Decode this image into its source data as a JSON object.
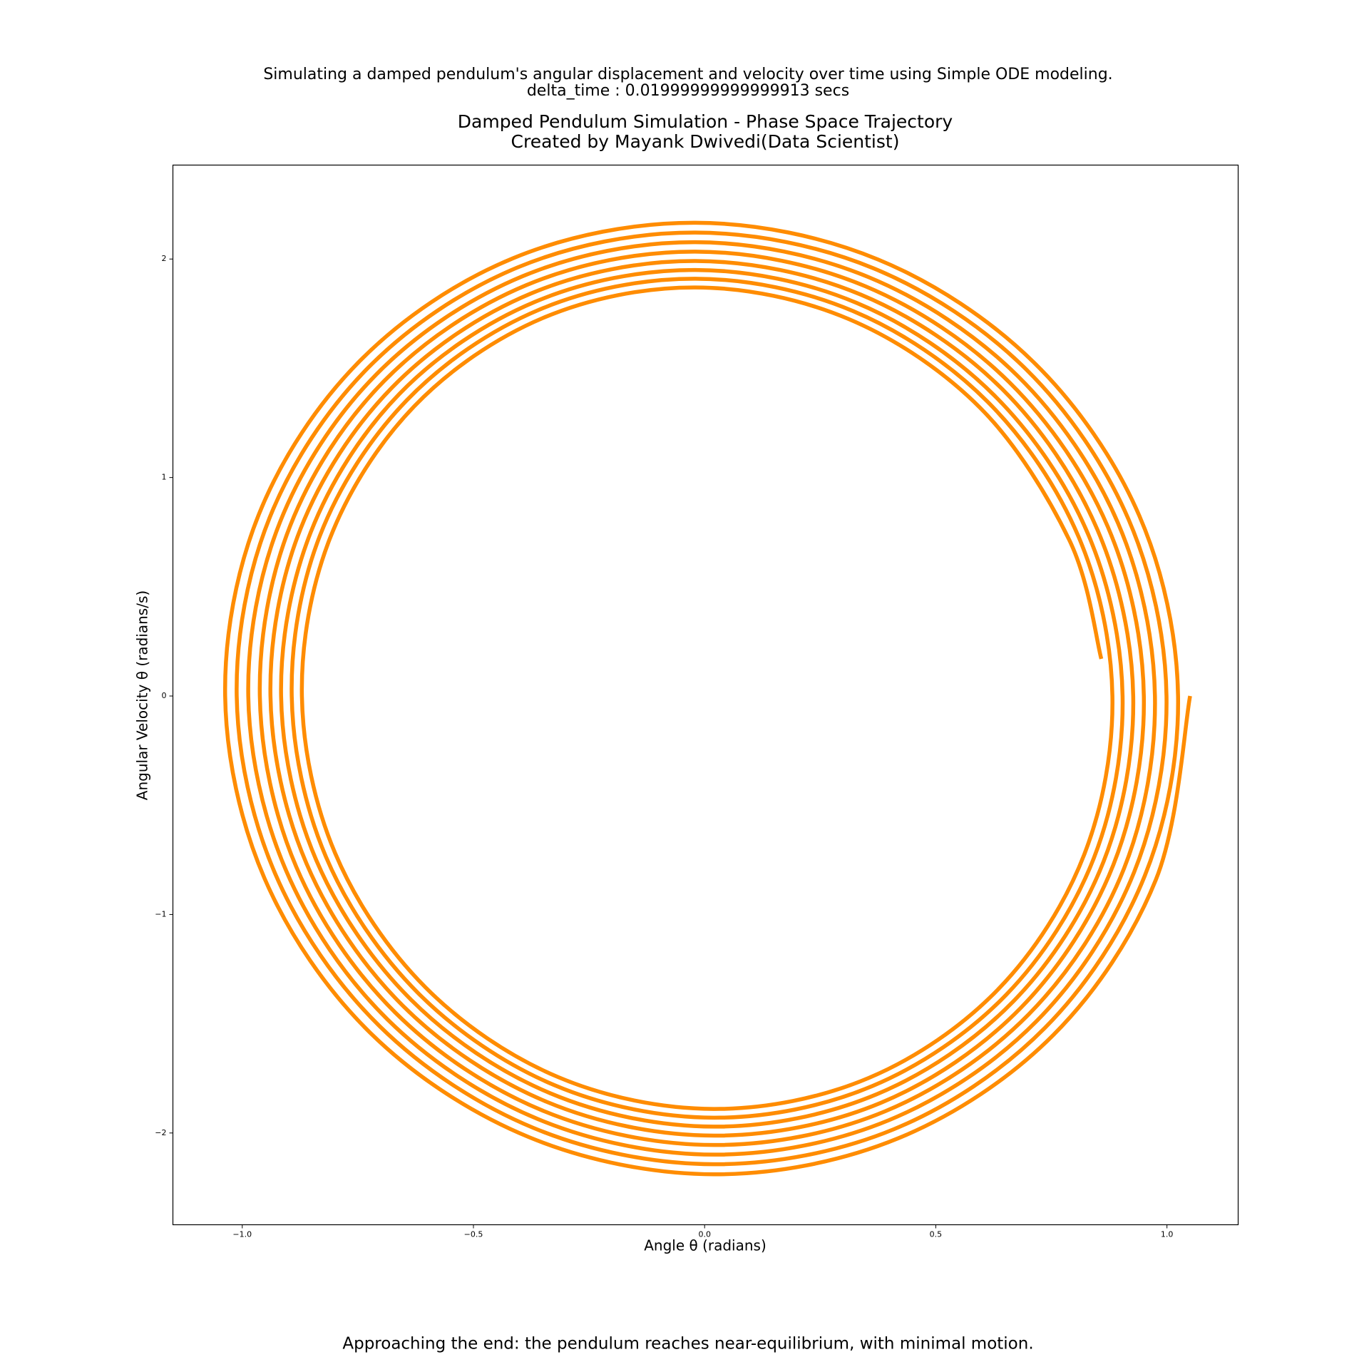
{
  "chart_data": {
    "type": "line",
    "suptitle": [
      "Simulating a damped pendulum's angular displacement and velocity over time using Simple ODE modeling.",
      "delta_time : 0.01999999999999913 secs"
    ],
    "title": [
      "Damped Pendulum Simulation - Phase Space Trajectory",
      "Created by Mayank Dwivedi(Data Scientist)"
    ],
    "xlabel": "Angle θ (radians)",
    "ylabel": "Angular Velocity θ (radians/s)",
    "annotation": "Approaching the end: the pendulum reaches near-equilibrium, with minimal motion.",
    "annotation_color": "#008000",
    "color": "#ff8c00",
    "xlim": [
      -1.15,
      1.154
    ],
    "ylim": [
      -2.42,
      2.43
    ],
    "xticks": [
      {
        "value": -1,
        "label": "−1.0"
      },
      {
        "value": -0.5,
        "label": "−0.5"
      },
      {
        "value": 0,
        "label": "0.0"
      },
      {
        "value": 0.5,
        "label": "0.5"
      },
      {
        "value": 1,
        "label": "1.0"
      }
    ],
    "yticks": [
      {
        "value": -2,
        "label": "−2"
      },
      {
        "value": -1,
        "label": "−1"
      },
      0,
      1,
      2
    ],
    "grid": false,
    "x": [
      1.05,
      0.976,
      0.754,
      0.418,
      0.02,
      -0.38,
      -0.722,
      -0.952,
      -1.037,
      -0.964,
      -0.745,
      -0.414,
      -0.02,
      0.375,
      0.712,
      0.94,
      1.024,
      0.952,
      0.736,
      0.409,
      0.02,
      -0.37,
      -0.703,
      -0.928,
      -1.012,
      -0.941,
      -0.727,
      -0.404,
      -0.02,
      0.366,
      0.695,
      0.917,
      0.999,
      0.929,
      0.718,
      0.399,
      0.02,
      -0.361,
      -0.686,
      -0.905,
      -0.987,
      -0.918,
      -0.71,
      -0.394,
      -0.02,
      0.356,
      0.677,
      0.894,
      0.974,
      0.907,
      0.701,
      0.39,
      0.02,
      -0.352,
      -0.669,
      -0.883,
      -0.962,
      -0.896,
      -0.693,
      -0.385,
      -0.02,
      0.347,
      0.66,
      0.872,
      0.95,
      0.884,
      0.684,
      0.381,
      0.02,
      -0.342,
      -0.652,
      -0.861,
      -0.939,
      -0.874,
      -0.676,
      -0.376,
      -0.02,
      0.338,
      0.644,
      0.85,
      0.927,
      0.863,
      0.668,
      0.372,
      0.02,
      -0.334,
      -0.635,
      -0.84,
      -0.916,
      -0.852,
      -0.66,
      -0.367,
      -0.02,
      0.329,
      0.627,
      0.829,
      0.904,
      0.842,
      0.652,
      0.363,
      0.02,
      -0.325,
      -0.619,
      -0.819,
      -0.893,
      -0.832,
      -0.644,
      -0.359,
      -0.02,
      0.321,
      0.612,
      0.809,
      0.882,
      0.821,
      0.636,
      0.355,
      0.02,
      -0.317,
      -0.604,
      -0.799,
      -0.871,
      -0.811,
      -0.628,
      -0.35,
      -0.02,
      0.312,
      0.596,
      0.789,
      0.858
    ],
    "values": [
      0,
      -0.841,
      -1.552,
      -2.025,
      -2.189,
      -2.019,
      -1.544,
      -0.834,
      0,
      0.832,
      1.535,
      2.004,
      2.166,
      1.998,
      1.527,
      0.826,
      0,
      -0.823,
      -1.519,
      -1.983,
      -2.143,
      -1.977,
      -1.511,
      -0.817,
      0,
      0.815,
      1.504,
      1.962,
      2.121,
      1.957,
      1.496,
      0.808,
      0,
      -0.806,
      -1.488,
      -1.941,
      -2.099,
      -1.936,
      -1.48,
      -0.8,
      0,
      0.798,
      1.472,
      1.921,
      2.077,
      1.916,
      1.465,
      0.792,
      0,
      -0.79,
      -1.457,
      -1.901,
      -2.055,
      -1.896,
      -1.449,
      -0.783,
      0,
      0.781,
      1.442,
      1.881,
      2.034,
      1.876,
      1.434,
      0.775,
      0,
      -0.773,
      -1.427,
      -1.862,
      -2.012,
      -1.857,
      -1.419,
      -0.767,
      0,
      0.765,
      1.412,
      1.842,
      1.991,
      1.837,
      1.404,
      0.759,
      0,
      -0.757,
      -1.397,
      -1.823,
      -1.971,
      -1.818,
      -1.39,
      -0.751,
      0,
      0.749,
      1.383,
      1.804,
      1.95,
      1.799,
      1.375,
      0.743,
      0,
      -0.741,
      -1.368,
      -1.785,
      -1.93,
      -1.781,
      -1.361,
      -0.736,
      0,
      0.734,
      1.354,
      1.767,
      1.91,
      1.762,
      1.347,
      0.728,
      0,
      -0.726,
      -1.34,
      -1.748,
      -1.89,
      -1.744,
      -1.333,
      -0.72,
      0,
      0.718,
      1.326,
      1.73,
      1.87,
      1.725,
      1.319,
      0.713,
      0.17
    ]
  }
}
